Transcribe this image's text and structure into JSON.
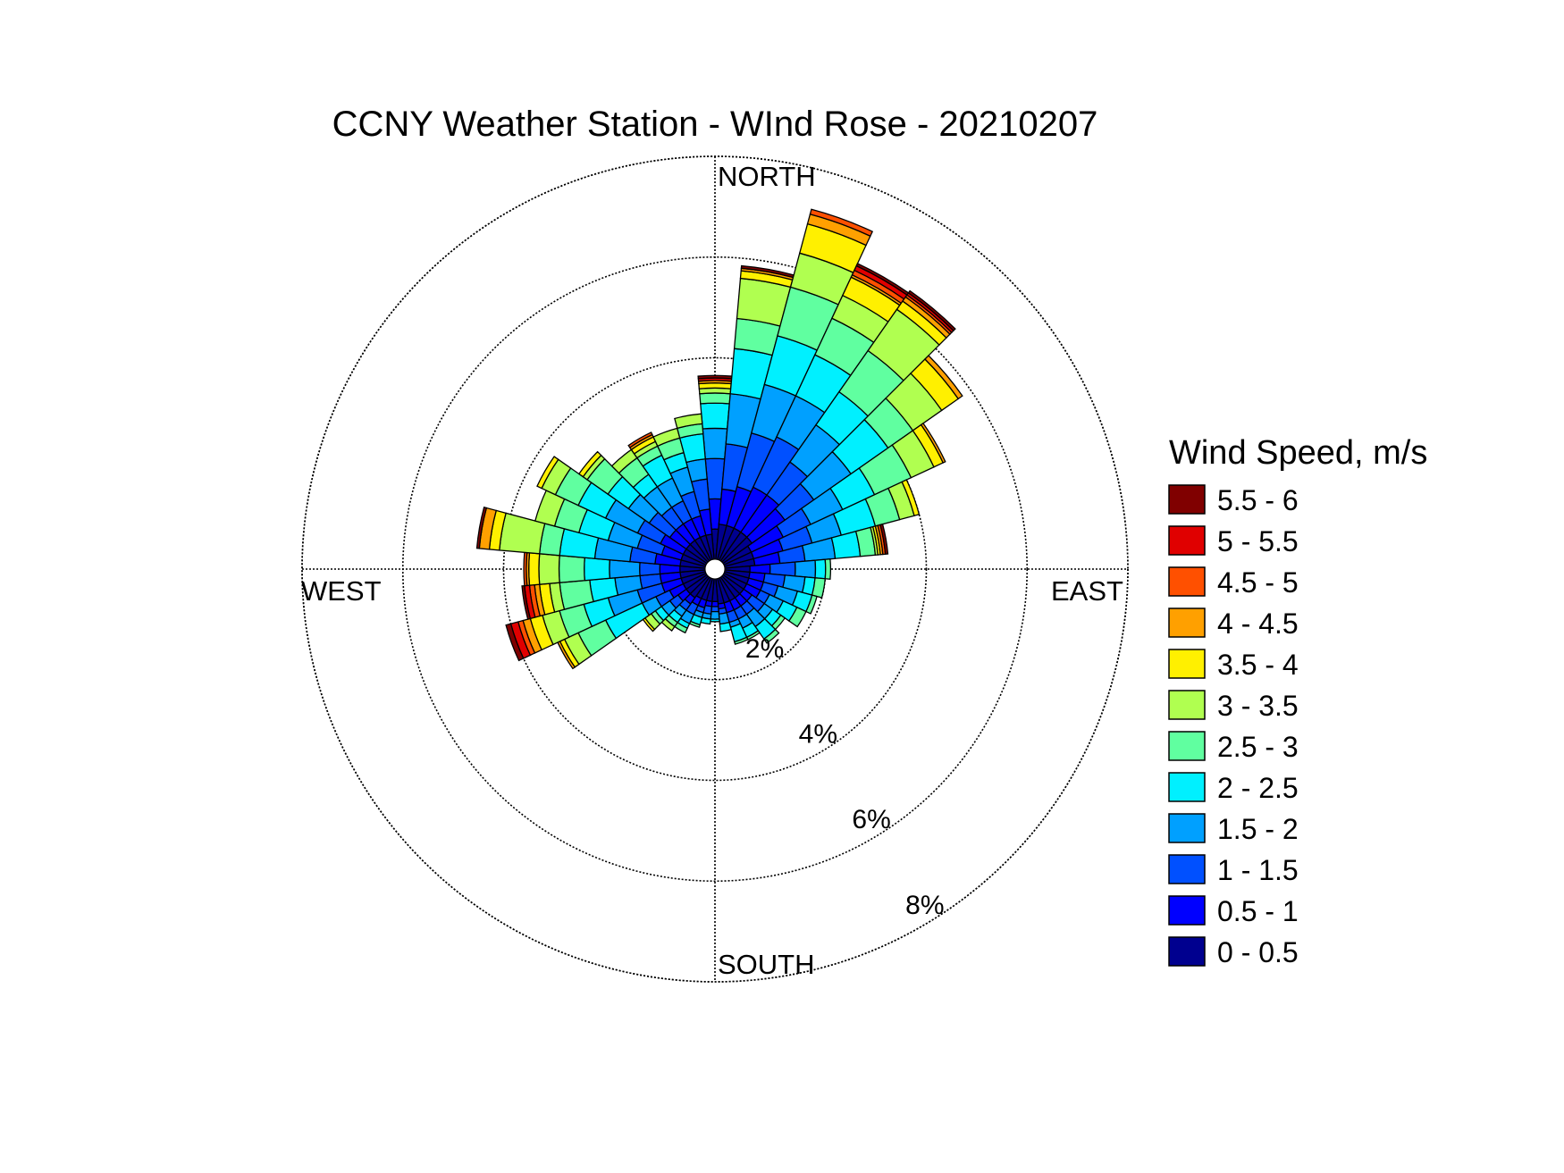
{
  "chart_data": {
    "type": "wind-rose",
    "title": "CCNY Weather Station - WInd Rose - 20210207",
    "direction_labels": {
      "north": "NORTH",
      "east": "EAST",
      "south": "SOUTH",
      "west": "WEST"
    },
    "ring_labels": [
      "2%",
      "4%",
      "6%",
      "8%"
    ],
    "ring_values": [
      2,
      4,
      6,
      8
    ],
    "rmax": 8,
    "legend_title": "Wind Speed, m/s",
    "speed_bins": [
      {
        "label": "0 - 0.5",
        "color": "#00008F"
      },
      {
        "label": "0.5 - 1",
        "color": "#0000FF"
      },
      {
        "label": "1 - 1.5",
        "color": "#0050FF"
      },
      {
        "label": "1.5 - 2",
        "color": "#00A0FF"
      },
      {
        "label": "2 - 2.5",
        "color": "#00F0FF"
      },
      {
        "label": "2.5 - 3",
        "color": "#60FFA0"
      },
      {
        "label": "3 - 3.5",
        "color": "#B0FF50"
      },
      {
        "label": "3.5 - 4",
        "color": "#FFF000"
      },
      {
        "label": "4 - 4.5",
        "color": "#FFA000"
      },
      {
        "label": "4.5 - 5",
        "color": "#FF5000"
      },
      {
        "label": "5 - 5.5",
        "color": "#E00000"
      },
      {
        "label": "5.5 - 6",
        "color": "#800000"
      }
    ],
    "sector_width_deg": 10,
    "sectors": [
      {
        "direction": 0,
        "cumulative": [
          0.6,
          1.2,
          2.0,
          2.6,
          3.1,
          3.3,
          3.4,
          3.5,
          3.55,
          3.55,
          3.6,
          3.65
        ]
      },
      {
        "direction": 10,
        "cumulative": [
          0.7,
          1.4,
          2.3,
          3.3,
          4.2,
          4.8,
          5.6,
          5.75,
          5.8,
          5.8,
          5.8,
          5.85
        ]
      },
      {
        "direction": 20,
        "cumulative": [
          0.7,
          1.5,
          2.6,
          3.6,
          4.6,
          5.6,
          6.3,
          6.9,
          7.1,
          7.2,
          7.2,
          7.2
        ]
      },
      {
        "direction": 30,
        "cumulative": [
          0.7,
          1.6,
          2.7,
          3.6,
          4.5,
          5.3,
          5.8,
          6.2,
          6.25,
          6.35,
          6.45,
          6.5
        ]
      },
      {
        "direction": 40,
        "cumulative": [
          0.7,
          1.6,
          2.4,
          3.3,
          4.1,
          5.1,
          6.1,
          6.3,
          6.4,
          6.45,
          6.5,
          6.55
        ]
      },
      {
        "direction": 50,
        "cumulative": [
          0.7,
          1.5,
          2.2,
          3.1,
          4.0,
          4.6,
          5.3,
          5.7,
          5.8,
          5.8,
          5.8,
          5.8
        ]
      },
      {
        "direction": 60,
        "cumulative": [
          0.6,
          1.3,
          1.9,
          2.6,
          3.3,
          4.1,
          4.6,
          4.8,
          4.85,
          4.85,
          4.85,
          4.85
        ]
      },
      {
        "direction": 70,
        "cumulative": [
          0.6,
          1.2,
          1.8,
          2.4,
          3.1,
          3.6,
          3.9,
          4.0,
          4.0,
          4.0,
          4.0,
          4.0
        ]
      },
      {
        "direction": 80,
        "cumulative": [
          0.6,
          1.1,
          1.6,
          2.2,
          2.7,
          3.0,
          3.05,
          3.1,
          3.15,
          3.2,
          3.2,
          3.25
        ]
      },
      {
        "direction": 90,
        "cumulative": [
          0.5,
          0.9,
          1.4,
          1.8,
          2.0,
          2.1,
          2.1,
          2.1,
          2.1,
          2.1,
          2.1,
          2.1
        ]
      },
      {
        "direction": 100,
        "cumulative": [
          0.5,
          0.8,
          1.2,
          1.6,
          1.8,
          2.0,
          2.0,
          2.0,
          2.0,
          2.0,
          2.0,
          2.0
        ]
      },
      {
        "direction": 110,
        "cumulative": [
          0.5,
          0.8,
          1.1,
          1.5,
          1.8,
          1.9,
          1.9,
          1.9,
          1.9,
          1.9,
          1.9,
          1.9
        ]
      },
      {
        "direction": 120,
        "cumulative": [
          0.5,
          0.8,
          1.0,
          1.3,
          1.6,
          1.8,
          1.8,
          1.8,
          1.8,
          1.8,
          1.8,
          1.8
        ]
      },
      {
        "direction": 130,
        "cumulative": [
          0.5,
          0.7,
          1.0,
          1.2,
          1.4,
          1.5,
          1.5,
          1.5,
          1.5,
          1.5,
          1.5,
          1.5
        ]
      },
      {
        "direction": 140,
        "cumulative": [
          0.5,
          0.7,
          0.9,
          1.2,
          1.5,
          1.6,
          1.6,
          1.6,
          1.6,
          1.6,
          1.6,
          1.6
        ]
      },
      {
        "direction": 150,
        "cumulative": [
          0.5,
          0.7,
          0.9,
          1.1,
          1.3,
          1.35,
          1.35,
          1.35,
          1.35,
          1.35,
          1.35,
          1.35
        ]
      },
      {
        "direction": 160,
        "cumulative": [
          0.5,
          0.7,
          0.9,
          1.0,
          1.3,
          1.35,
          1.35,
          1.35,
          1.35,
          1.35,
          1.35,
          1.35
        ]
      },
      {
        "direction": 170,
        "cumulative": [
          0.5,
          0.6,
          0.7,
          0.9,
          1.05,
          1.05,
          1.05,
          1.05,
          1.05,
          1.05,
          1.05,
          1.05
        ]
      },
      {
        "direction": 180,
        "cumulative": [
          0.45,
          0.55,
          0.65,
          0.8,
          0.85,
          0.85,
          0.85,
          0.85,
          0.85,
          0.85,
          0.85,
          0.85
        ]
      },
      {
        "direction": 190,
        "cumulative": [
          0.45,
          0.55,
          0.7,
          0.8,
          0.9,
          0.9,
          0.9,
          0.9,
          0.9,
          0.9,
          0.9,
          0.9
        ]
      },
      {
        "direction": 200,
        "cumulative": [
          0.45,
          0.6,
          0.7,
          0.8,
          0.95,
          1.0,
          1.0,
          1.0,
          1.0,
          1.0,
          1.0,
          1.0
        ]
      },
      {
        "direction": 210,
        "cumulative": [
          0.45,
          0.6,
          0.8,
          1.0,
          1.1,
          1.2,
          1.2,
          1.2,
          1.2,
          1.2,
          1.2,
          1.2
        ]
      },
      {
        "direction": 220,
        "cumulative": [
          0.5,
          0.65,
          0.8,
          0.95,
          1.1,
          1.2,
          1.3,
          1.3,
          1.3,
          1.3,
          1.3,
          1.3
        ]
      },
      {
        "direction": 230,
        "cumulative": [
          0.5,
          0.7,
          0.9,
          1.1,
          1.25,
          1.35,
          1.5,
          1.55,
          1.55,
          1.55,
          1.55,
          1.55
        ]
      },
      {
        "direction": 240,
        "cumulative": [
          0.5,
          0.8,
          1.1,
          1.4,
          2.2,
          2.8,
          3.1,
          3.2,
          3.25,
          3.25,
          3.25,
          3.25
        ]
      },
      {
        "direction": 250,
        "cumulative": [
          0.5,
          0.9,
          1.4,
          2.0,
          2.5,
          3.0,
          3.35,
          3.6,
          3.75,
          3.85,
          4.0,
          4.1
        ]
      },
      {
        "direction": 260,
        "cumulative": [
          0.5,
          0.9,
          1.3,
          1.8,
          2.3,
          2.9,
          3.1,
          3.3,
          3.4,
          3.5,
          3.6,
          3.65
        ]
      },
      {
        "direction": 270,
        "cumulative": [
          0.5,
          0.9,
          1.3,
          1.9,
          2.4,
          2.9,
          3.3,
          3.5,
          3.55,
          3.6,
          3.6,
          3.6
        ]
      },
      {
        "direction": 280,
        "cumulative": [
          0.5,
          1.0,
          1.5,
          2.2,
          2.9,
          3.3,
          4.1,
          4.3,
          4.5,
          4.5,
          4.5,
          4.55
        ]
      },
      {
        "direction": 290,
        "cumulative": [
          0.5,
          0.9,
          1.4,
          2.0,
          2.6,
          3.1,
          3.5,
          3.5,
          3.5,
          3.5,
          3.5,
          3.5
        ]
      },
      {
        "direction": 300,
        "cumulative": [
          0.5,
          1.0,
          1.5,
          2.2,
          2.8,
          3.3,
          3.6,
          3.7,
          3.7,
          3.7,
          3.7,
          3.7
        ]
      },
      {
        "direction": 310,
        "cumulative": [
          0.5,
          0.9,
          1.4,
          1.9,
          2.4,
          2.9,
          3.0,
          3.1,
          3.1,
          3.1,
          3.1,
          3.1
        ]
      },
      {
        "direction": 320,
        "cumulative": [
          0.5,
          0.9,
          1.3,
          1.8,
          2.1,
          2.5,
          2.7,
          2.7,
          2.7,
          2.7,
          2.7,
          2.7
        ]
      },
      {
        "direction": 330,
        "cumulative": [
          0.5,
          0.9,
          1.3,
          1.8,
          2.3,
          2.5,
          2.6,
          2.7,
          2.75,
          2.8,
          2.8,
          2.8
        ]
      },
      {
        "direction": 340,
        "cumulative": [
          0.5,
          0.9,
          1.4,
          1.9,
          2.2,
          2.5,
          2.7,
          2.7,
          2.7,
          2.7,
          2.7,
          2.7
        ]
      },
      {
        "direction": 350,
        "cumulative": [
          0.5,
          1.0,
          1.6,
          2.0,
          2.5,
          2.7,
          2.9,
          2.9,
          2.9,
          2.9,
          2.9,
          2.9
        ]
      }
    ]
  }
}
